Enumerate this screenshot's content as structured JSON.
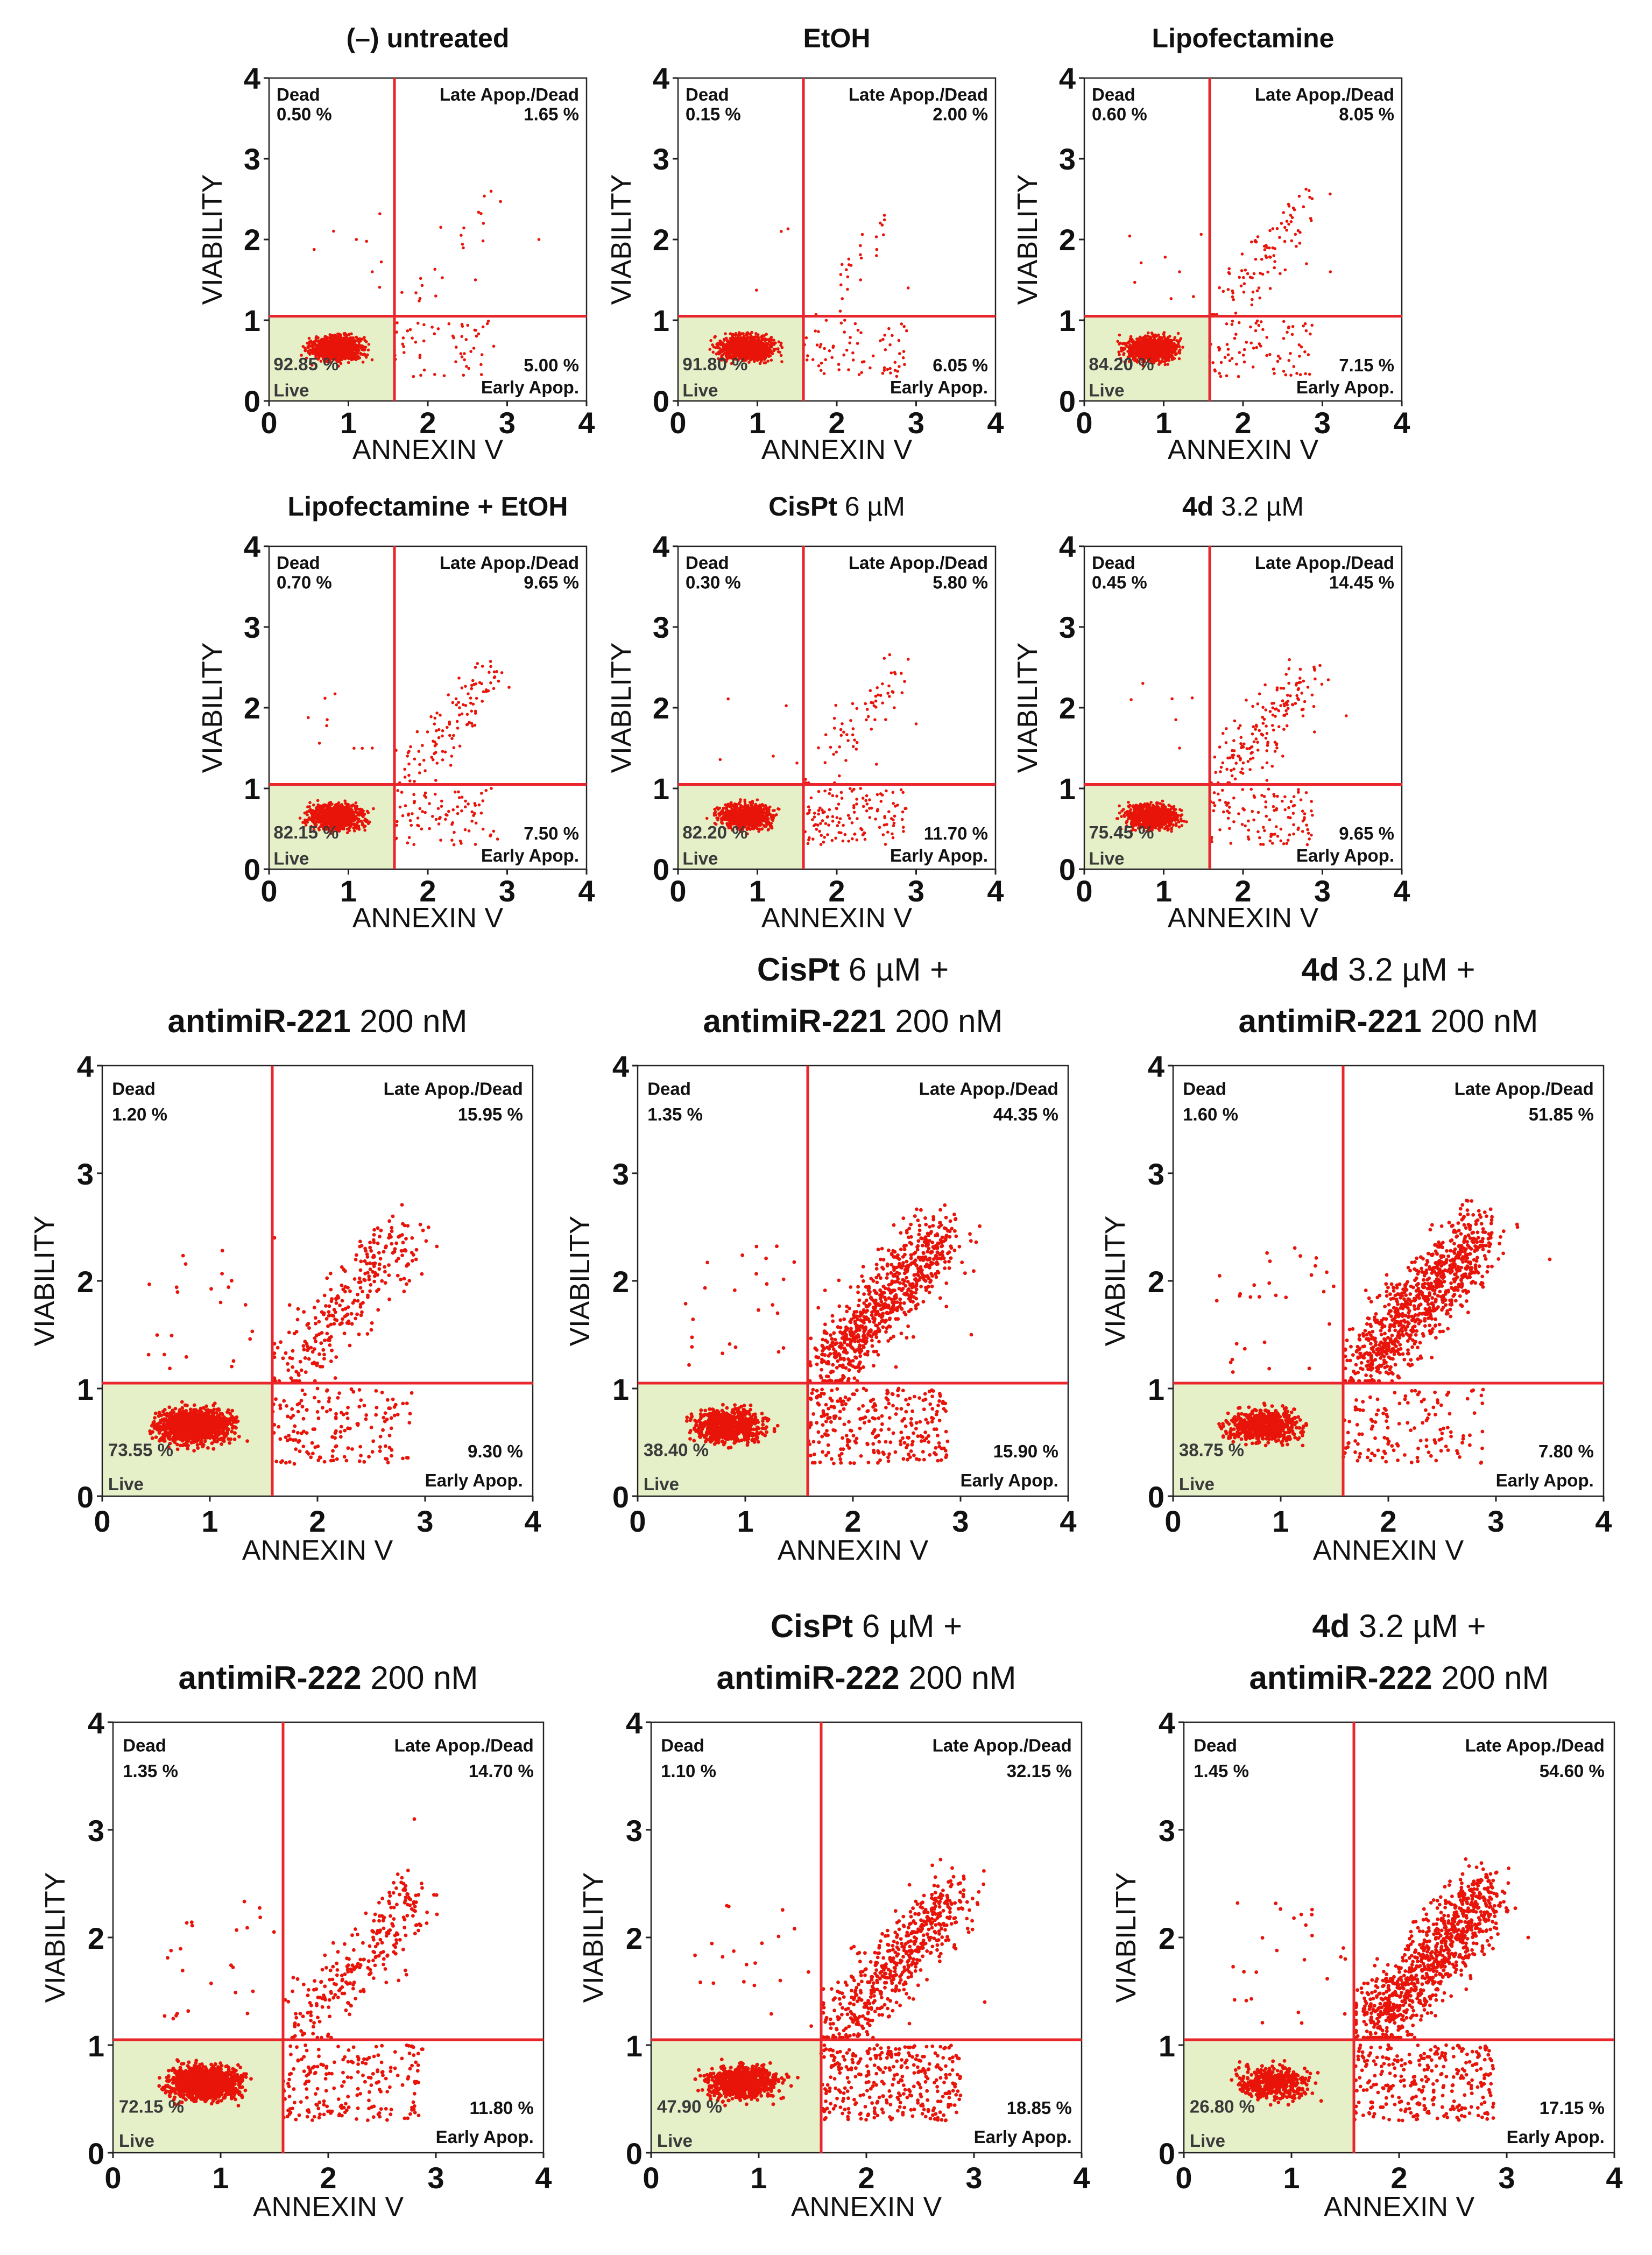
{
  "chart_data": [
    {
      "type": "scatter",
      "title": [
        {
          "text": "(–) untreated",
          "bold": true
        }
      ],
      "xlabel": "ANNEXIN V",
      "ylabel": "VIABILITY",
      "xlim": [
        0,
        4
      ],
      "ylim": [
        0,
        4
      ],
      "xticks": [
        "0",
        "1",
        "2",
        "3",
        "4"
      ],
      "yticks": [
        "0",
        "1",
        "2",
        "3",
        "4"
      ],
      "gate": {
        "x": 1.58,
        "y": 1.05
      },
      "quadrants": {
        "dead": {
          "label": "Dead",
          "value": "0.50 %"
        },
        "late": {
          "label": "Late Apop./Dead",
          "value": "1.65 %"
        },
        "early": {
          "label": "Early Apop.",
          "value": "5.00 %"
        },
        "live": {
          "label": "Live",
          "value": "92.85 %"
        }
      },
      "points": [
        [
          0.85,
          0.65
        ],
        [
          1.7,
          0.6
        ],
        [
          2.1,
          1.3
        ],
        [
          2.6,
          1.5
        ],
        [
          1.3,
          1.6
        ],
        [
          3.4,
          2.0
        ],
        [
          2.7,
          2.2
        ],
        [
          1.1,
          2.0
        ]
      ]
    },
    {
      "type": "scatter",
      "title": [
        {
          "text": "EtOH",
          "bold": true
        }
      ],
      "xlabel": "ANNEXIN V",
      "ylabel": "VIABILITY",
      "xlim": [
        0,
        4
      ],
      "ylim": [
        0,
        4
      ],
      "xticks": [
        "0",
        "1",
        "2",
        "3",
        "4"
      ],
      "yticks": [
        "0",
        "1",
        "2",
        "3",
        "4"
      ],
      "gate": {
        "x": 1.58,
        "y": 1.05
      },
      "quadrants": {
        "dead": {
          "label": "Dead",
          "value": "0.15 %"
        },
        "late": {
          "label": "Late Apop./Dead",
          "value": "2.00 %"
        },
        "early": {
          "label": "Early Apop.",
          "value": "6.05 %"
        },
        "live": {
          "label": "Live",
          "value": "91.80 %"
        }
      },
      "points": [
        [
          0.8,
          0.65
        ],
        [
          1.8,
          0.7
        ],
        [
          2.3,
          1.5
        ],
        [
          2.5,
          1.8
        ],
        [
          2.6,
          2.3
        ],
        [
          2.1,
          1.0
        ],
        [
          1.3,
          2.1
        ],
        [
          2.9,
          1.4
        ]
      ]
    },
    {
      "type": "scatter",
      "title": [
        {
          "text": "Lipofectamine",
          "bold": true
        }
      ],
      "xlabel": "ANNEXIN V",
      "ylabel": "VIABILITY",
      "xlim": [
        0,
        4
      ],
      "ylim": [
        0,
        4
      ],
      "xticks": [
        "0",
        "1",
        "2",
        "3",
        "4"
      ],
      "yticks": [
        "0",
        "1",
        "2",
        "3",
        "4"
      ],
      "gate": {
        "x": 1.58,
        "y": 1.05
      },
      "quadrants": {
        "dead": {
          "label": "Dead",
          "value": "0.60 %"
        },
        "late": {
          "label": "Late Apop./Dead",
          "value": "8.05 %"
        },
        "early": {
          "label": "Early Apop.",
          "value": "7.15 %"
        },
        "live": {
          "label": "Live",
          "value": "84.20 %"
        }
      },
      "points": [
        [
          0.8,
          0.65
        ],
        [
          1.8,
          0.7
        ],
        [
          2.3,
          1.9
        ],
        [
          2.2,
          1.4
        ],
        [
          2.6,
          2.3
        ],
        [
          2.8,
          1.7
        ],
        [
          1.2,
          1.6
        ],
        [
          3.1,
          1.6
        ]
      ]
    },
    {
      "type": "scatter",
      "title": [
        {
          "text": "Lipofectamine + EtOH",
          "bold": true
        }
      ],
      "xlabel": "ANNEXIN V",
      "ylabel": "VIABILITY",
      "xlim": [
        0,
        4
      ],
      "ylim": [
        0,
        4
      ],
      "xticks": [
        "0",
        "1",
        "2",
        "3",
        "4"
      ],
      "yticks": [
        "0",
        "1",
        "2",
        "3",
        "4"
      ],
      "gate": {
        "x": 1.58,
        "y": 1.05
      },
      "quadrants": {
        "dead": {
          "label": "Dead",
          "value": "0.70 %"
        },
        "late": {
          "label": "Late Apop./Dead",
          "value": "9.65 %"
        },
        "early": {
          "label": "Early Apop.",
          "value": "7.50 %"
        },
        "live": {
          "label": "Live",
          "value": "82.15 %"
        }
      },
      "points": [
        [
          0.8,
          0.65
        ],
        [
          1.9,
          0.75
        ],
        [
          2.3,
          1.4
        ],
        [
          2.4,
          2.0
        ],
        [
          2.1,
          1.1
        ],
        [
          2.6,
          2.5
        ],
        [
          1.3,
          1.5
        ],
        [
          2.8,
          1.0
        ]
      ]
    },
    {
      "type": "scatter",
      "title": [
        {
          "text": "CisPt",
          "bold": true
        },
        {
          "text": " 6 µM",
          "bold": false
        }
      ],
      "xlabel": "ANNEXIN V",
      "ylabel": "VIABILITY",
      "xlim": [
        0,
        4
      ],
      "ylim": [
        0,
        4
      ],
      "xticks": [
        "0",
        "1",
        "2",
        "3",
        "4"
      ],
      "yticks": [
        "0",
        "1",
        "2",
        "3",
        "4"
      ],
      "gate": {
        "x": 1.58,
        "y": 1.05
      },
      "quadrants": {
        "dead": {
          "label": "Dead",
          "value": "0.30 %"
        },
        "late": {
          "label": "Late Apop./Dead",
          "value": "5.80 %"
        },
        "early": {
          "label": "Early Apop.",
          "value": "11.70 %"
        },
        "live": {
          "label": "Live",
          "value": "82.20 %"
        }
      },
      "points": [
        [
          0.85,
          0.65
        ],
        [
          2.0,
          0.75
        ],
        [
          2.5,
          1.3
        ],
        [
          2.7,
          2.2
        ],
        [
          2.3,
          1.0
        ],
        [
          2.9,
          2.6
        ],
        [
          1.2,
          1.4
        ],
        [
          3.0,
          1.8
        ]
      ]
    },
    {
      "type": "scatter",
      "title": [
        {
          "text": "4d",
          "bold": true
        },
        {
          "text": " 3.2 µM",
          "bold": false
        }
      ],
      "xlabel": "ANNEXIN V",
      "ylabel": "VIABILITY",
      "xlim": [
        0,
        4
      ],
      "ylim": [
        0,
        4
      ],
      "xticks": [
        "0",
        "1",
        "2",
        "3",
        "4"
      ],
      "yticks": [
        "0",
        "1",
        "2",
        "3",
        "4"
      ],
      "gate": {
        "x": 1.58,
        "y": 1.05
      },
      "quadrants": {
        "dead": {
          "label": "Dead",
          "value": "0.45 %"
        },
        "late": {
          "label": "Late Apop./Dead",
          "value": "14.45 %"
        },
        "early": {
          "label": "Early Apop.",
          "value": "9.65 %"
        },
        "live": {
          "label": "Live",
          "value": "75.45 %"
        }
      },
      "points": [
        [
          0.8,
          0.65
        ],
        [
          2.0,
          0.75
        ],
        [
          2.5,
          1.4
        ],
        [
          2.7,
          2.1
        ],
        [
          2.3,
          1.1
        ],
        [
          2.9,
          1.7
        ],
        [
          1.2,
          1.5
        ],
        [
          3.3,
          1.9
        ]
      ]
    },
    {
      "type": "scatter",
      "title": [
        {
          "text": "antimiR-221",
          "bold": true
        },
        {
          "text": " 200 nM",
          "bold": false
        }
      ],
      "xlabel": "ANNEXIN V",
      "ylabel": "VIABILITY",
      "xlim": [
        0,
        4
      ],
      "ylim": [
        0,
        4
      ],
      "xticks": [
        "0",
        "1",
        "2",
        "3",
        "4"
      ],
      "yticks": [
        "0",
        "1",
        "2",
        "3",
        "4"
      ],
      "gate": {
        "x": 1.58,
        "y": 1.05
      },
      "quadrants": {
        "dead": {
          "label": "Dead",
          "value": "1.20 %"
        },
        "late": {
          "label": "Late Apop./Dead",
          "value": "15.95 %"
        },
        "early": {
          "label": "Early Apop.",
          "value": "9.30 %"
        },
        "live": {
          "label": "Live",
          "value": "73.55 %"
        }
      },
      "points": [
        [
          0.85,
          0.65
        ],
        [
          1.9,
          0.8
        ],
        [
          2.3,
          1.4
        ],
        [
          2.4,
          2.1
        ],
        [
          2.0,
          1.0
        ],
        [
          2.7,
          2.6
        ],
        [
          1.1,
          1.8
        ],
        [
          1.6,
          2.4
        ]
      ]
    },
    {
      "type": "scatter",
      "title": [
        {
          "text": "CisPt",
          "bold": true
        },
        {
          "text": " 6 µM +",
          "bold": false
        },
        {
          "text": "\n",
          "bold": false
        },
        {
          "text": "antimiR-221",
          "bold": true
        },
        {
          "text": " 200 nM",
          "bold": false
        }
      ],
      "xlabel": "ANNEXIN V",
      "ylabel": "VIABILITY",
      "xlim": [
        0,
        4
      ],
      "ylim": [
        0,
        4
      ],
      "xticks": [
        "0",
        "1",
        "2",
        "3",
        "4"
      ],
      "yticks": [
        "0",
        "1",
        "2",
        "3",
        "4"
      ],
      "gate": {
        "x": 1.58,
        "y": 1.05
      },
      "quadrants": {
        "dead": {
          "label": "Dead",
          "value": "1.35 %"
        },
        "late": {
          "label": "Late Apop./Dead",
          "value": "44.35 %"
        },
        "early": {
          "label": "Early Apop.",
          "value": "15.90 %"
        },
        "live": {
          "label": "Live",
          "value": "38.40 %"
        }
      },
      "points": [
        [
          0.95,
          0.65
        ],
        [
          1.9,
          0.85
        ],
        [
          2.4,
          1.2
        ],
        [
          2.6,
          2.0
        ],
        [
          2.1,
          1.0
        ],
        [
          2.8,
          2.5
        ],
        [
          1.3,
          1.7
        ],
        [
          3.1,
          1.5
        ]
      ]
    },
    {
      "type": "scatter",
      "title": [
        {
          "text": "4d",
          "bold": true
        },
        {
          "text": " 3.2 µM +",
          "bold": false
        },
        {
          "text": "\n",
          "bold": false
        },
        {
          "text": "antimiR-221",
          "bold": true
        },
        {
          "text": " 200 nM",
          "bold": false
        }
      ],
      "xlabel": "ANNEXIN V",
      "ylabel": "VIABILITY",
      "xlim": [
        0,
        4
      ],
      "ylim": [
        0,
        4
      ],
      "xticks": [
        "0",
        "1",
        "2",
        "3",
        "4"
      ],
      "yticks": [
        "0",
        "1",
        "2",
        "3",
        "4"
      ],
      "gate": {
        "x": 1.58,
        "y": 1.05
      },
      "quadrants": {
        "dead": {
          "label": "Dead",
          "value": "1.60 %"
        },
        "late": {
          "label": "Late Apop./Dead",
          "value": "51.85 %"
        },
        "early": {
          "label": "Early Apop.",
          "value": "7.80 %"
        },
        "live": {
          "label": "Live",
          "value": "38.75 %"
        }
      },
      "points": [
        [
          1.0,
          0.7
        ],
        [
          1.9,
          0.9
        ],
        [
          2.3,
          1.3
        ],
        [
          2.6,
          2.2
        ],
        [
          2.1,
          1.1
        ],
        [
          3.2,
          2.5
        ],
        [
          1.4,
          1.9
        ],
        [
          3.5,
          2.2
        ]
      ]
    },
    {
      "type": "scatter",
      "title": [
        {
          "text": "antimiR-222",
          "bold": true
        },
        {
          "text": " 200 nM",
          "bold": false
        }
      ],
      "xlabel": "ANNEXIN V",
      "ylabel": "VIABILITY",
      "xlim": [
        0,
        4
      ],
      "ylim": [
        0,
        4
      ],
      "xticks": [
        "0",
        "1",
        "2",
        "3",
        "4"
      ],
      "yticks": [
        "0",
        "1",
        "2",
        "3",
        "4"
      ],
      "gate": {
        "x": 1.58,
        "y": 1.05
      },
      "quadrants": {
        "dead": {
          "label": "Dead",
          "value": "1.35 %"
        },
        "late": {
          "label": "Late Apop./Dead",
          "value": "14.70 %"
        },
        "early": {
          "label": "Early Apop.",
          "value": "11.80 %"
        },
        "live": {
          "label": "Live",
          "value": "72.15 %"
        }
      },
      "points": [
        [
          1.0,
          0.65
        ],
        [
          1.9,
          0.8
        ],
        [
          2.3,
          1.5
        ],
        [
          2.5,
          2.2
        ],
        [
          2.0,
          1.1
        ],
        [
          2.8,
          3.1
        ],
        [
          1.3,
          1.5
        ],
        [
          2.7,
          2.5
        ]
      ]
    },
    {
      "type": "scatter",
      "title": [
        {
          "text": "CisPt",
          "bold": true
        },
        {
          "text": " 6 µM +",
          "bold": false
        },
        {
          "text": "\n",
          "bold": false
        },
        {
          "text": "antimiR-222",
          "bold": true
        },
        {
          "text": " 200 nM",
          "bold": false
        }
      ],
      "xlabel": "ANNEXIN V",
      "ylabel": "VIABILITY",
      "xlim": [
        0,
        4
      ],
      "ylim": [
        0,
        4
      ],
      "xticks": [
        "0",
        "1",
        "2",
        "3",
        "4"
      ],
      "yticks": [
        "0",
        "1",
        "2",
        "3",
        "4"
      ],
      "gate": {
        "x": 1.58,
        "y": 1.05
      },
      "quadrants": {
        "dead": {
          "label": "Dead",
          "value": "1.10 %"
        },
        "late": {
          "label": "Late Apop./Dead",
          "value": "32.15 %"
        },
        "early": {
          "label": "Early Apop.",
          "value": "18.85 %"
        },
        "live": {
          "label": "Live",
          "value": "47.90 %"
        }
      },
      "points": [
        [
          0.95,
          0.65
        ],
        [
          1.9,
          0.9
        ],
        [
          2.4,
          1.2
        ],
        [
          2.6,
          2.0
        ],
        [
          2.1,
          1.0
        ],
        [
          2.9,
          2.4
        ],
        [
          1.2,
          1.6
        ],
        [
          3.1,
          1.4
        ]
      ]
    },
    {
      "type": "scatter",
      "title": [
        {
          "text": "4d",
          "bold": true
        },
        {
          "text": " 3.2 µM +",
          "bold": false
        },
        {
          "text": "\n",
          "bold": false
        },
        {
          "text": "antimiR-222",
          "bold": true
        },
        {
          "text": " 200 nM",
          "bold": false
        }
      ],
      "xlabel": "ANNEXIN V",
      "ylabel": "VIABILITY",
      "xlim": [
        0,
        4
      ],
      "ylim": [
        0,
        4
      ],
      "xticks": [
        "0",
        "1",
        "2",
        "3",
        "4"
      ],
      "yticks": [
        "0",
        "1",
        "2",
        "3",
        "4"
      ],
      "gate": {
        "x": 1.58,
        "y": 1.05
      },
      "quadrants": {
        "dead": {
          "label": "Dead",
          "value": "1.45 %"
        },
        "late": {
          "label": "Late Apop./Dead",
          "value": "54.60 %"
        },
        "early": {
          "label": "Early Apop.",
          "value": "17.15 %"
        },
        "live": {
          "label": "Live",
          "value": "26.80 %"
        }
      },
      "points": [
        [
          1.1,
          0.7
        ],
        [
          1.9,
          1.0
        ],
        [
          2.3,
          1.3
        ],
        [
          2.6,
          2.2
        ],
        [
          2.1,
          1.1
        ],
        [
          2.9,
          2.6
        ],
        [
          1.5,
          1.8
        ],
        [
          3.2,
          2.0
        ]
      ]
    }
  ],
  "colors": {
    "points": "#e8140a",
    "gate": "#e8262c",
    "live_fill": "#e6f0c8",
    "frame": "#222222"
  }
}
